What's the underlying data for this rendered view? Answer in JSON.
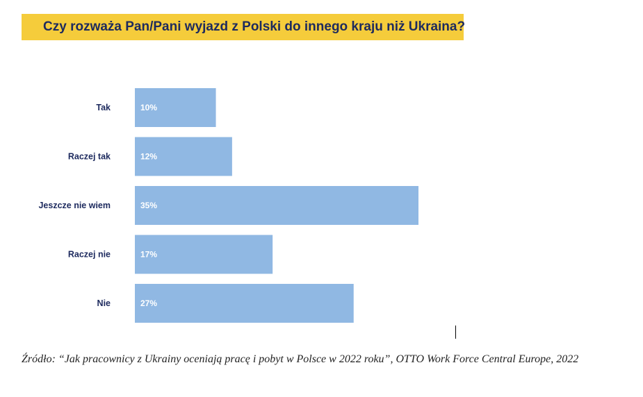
{
  "title": "Czy rozważa Pan/Pani wyjazd z Polski do innego kraju niż Ukraina?",
  "colors": {
    "banner": "#f5cc3b",
    "bar": "#90b8e3",
    "title_text": "#1d2a5e",
    "label_text": "#1d2a5e"
  },
  "chart_data": {
    "type": "bar",
    "orientation": "horizontal",
    "categories": [
      "Tak",
      "Raczej tak",
      "Jeszcze nie wiem",
      "Raczej nie",
      "Nie"
    ],
    "values": [
      10,
      12,
      35,
      17,
      27
    ],
    "value_labels": [
      "10%",
      "12%",
      "35%",
      "17%",
      "27%"
    ],
    "unit": "%",
    "grid": false,
    "legend": "none"
  },
  "source": {
    "prefix": "Źródło: “Jak pracownicy z Ukrainy oceniają pracę i pobyt w Polsce w 2022 roku”, OTTO Work Force Central Europe, 2022"
  }
}
